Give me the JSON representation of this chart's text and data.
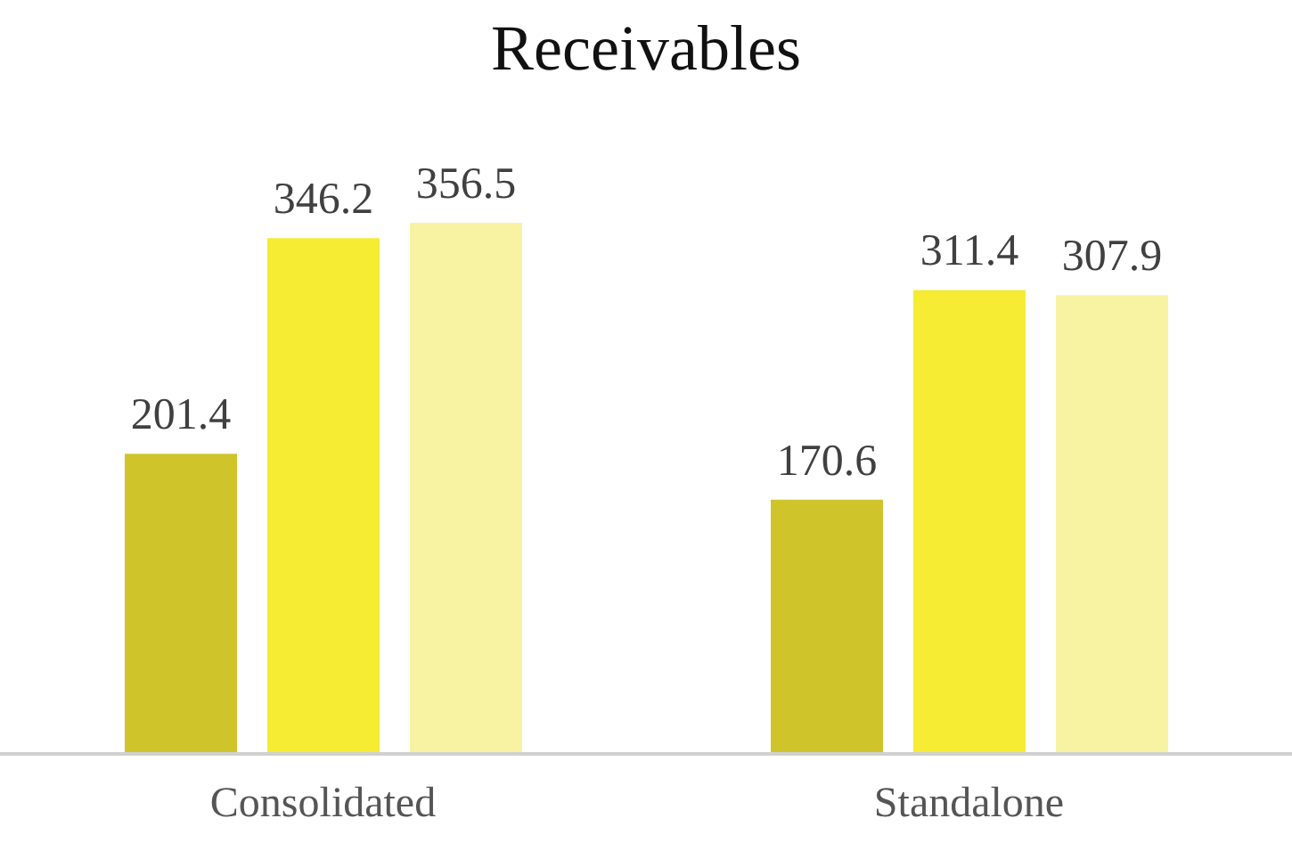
{
  "chart_data": {
    "type": "bar",
    "title": "Receivables",
    "categories": [
      "Consolidated",
      "Standalone"
    ],
    "series": [
      {
        "color": "#cfc42a",
        "values": [
          201.4,
          170.6
        ]
      },
      {
        "color": "#f5ec33",
        "values": [
          346.2,
          311.4
        ]
      },
      {
        "color": "#f8f3a3",
        "values": [
          356.5,
          307.9
        ]
      }
    ],
    "data_labels": true,
    "grid": false,
    "legend": false
  }
}
